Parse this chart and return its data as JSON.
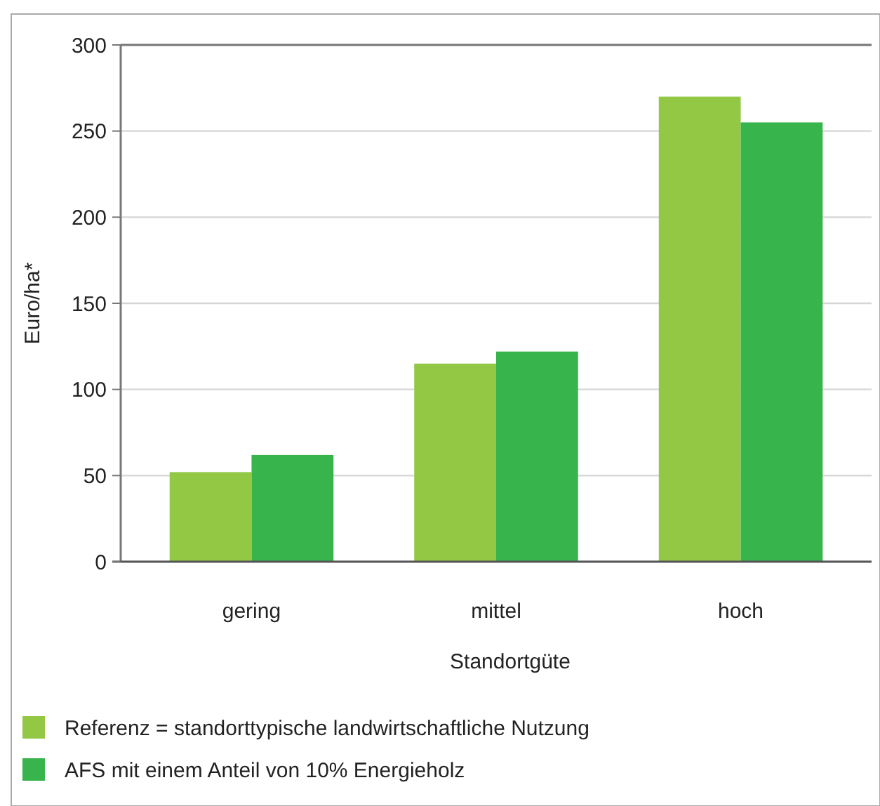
{
  "chart_data": {
    "type": "bar",
    "xlabel": "Standortgüte",
    "ylabel": "Euro/ha*",
    "categories": [
      "gering",
      "mittel",
      "hoch"
    ],
    "series": [
      {
        "name": "Referenz = standorttypische landwirtschaftliche Nutzung",
        "color": "#92c844",
        "values": [
          52,
          115,
          270
        ]
      },
      {
        "name": "AFS mit einem Anteil von 10% Energieholz",
        "color": "#37b44c",
        "values": [
          62,
          122,
          255
        ]
      }
    ],
    "ylim": [
      0,
      300
    ],
    "yticks": [
      0,
      50,
      100,
      150,
      200,
      250,
      300
    ],
    "grid": "y",
    "legend": "bottom"
  }
}
